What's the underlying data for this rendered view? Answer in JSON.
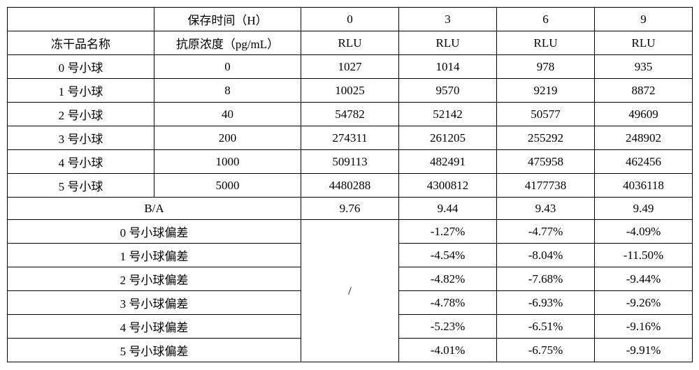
{
  "type": "table",
  "background_color": "#ffffff",
  "text_color": "#000000",
  "border_color": "#000000",
  "fontsize": 17,
  "header": {
    "row1_col1": "",
    "row1_col2": "保存时间（H）",
    "times": [
      "0",
      "3",
      "6",
      "9"
    ],
    "row2_col1": "冻干品名称",
    "row2_col2": "抗原浓度（pg/mL）",
    "rlu_labels": [
      "RLU",
      "RLU",
      "RLU",
      "RLU"
    ]
  },
  "rows": [
    {
      "name": "0 号小球",
      "conc": "0",
      "vals": [
        "1027",
        "1014",
        "978",
        "935"
      ]
    },
    {
      "name": "1 号小球",
      "conc": "8",
      "vals": [
        "10025",
        "9570",
        "9219",
        "8872"
      ]
    },
    {
      "name": "2 号小球",
      "conc": "40",
      "vals": [
        "54782",
        "52142",
        "50577",
        "49609"
      ]
    },
    {
      "name": "3 号小球",
      "conc": "200",
      "vals": [
        "274311",
        "261205",
        "255292",
        "248902"
      ]
    },
    {
      "name": "4 号小球",
      "conc": "1000",
      "vals": [
        "509113",
        "482491",
        "475958",
        "462456"
      ]
    },
    {
      "name": "5 号小球",
      "conc": "5000",
      "vals": [
        "4480288",
        "4300812",
        "4177738",
        "4036118"
      ]
    }
  ],
  "ba_row": {
    "label": "B/A",
    "vals": [
      "9.76",
      "9.44",
      "9.43",
      "9.49"
    ]
  },
  "bias_section": {
    "placeholder": "/",
    "rows": [
      {
        "name": "0 号小球偏差",
        "vals": [
          "-1.27%",
          "-4.77%",
          "-4.09%"
        ]
      },
      {
        "name": "1 号小球偏差",
        "vals": [
          "-4.54%",
          "-8.04%",
          "-11.50%"
        ]
      },
      {
        "name": "2 号小球偏差",
        "vals": [
          "-4.82%",
          "-7.68%",
          "-9.44%"
        ]
      },
      {
        "name": "3 号小球偏差",
        "vals": [
          "-4.78%",
          "-6.93%",
          "-9.26%"
        ]
      },
      {
        "name": "4 号小球偏差",
        "vals": [
          "-5.23%",
          "-6.51%",
          "-9.16%"
        ]
      },
      {
        "name": "5 号小球偏差",
        "vals": [
          "-4.01%",
          "-6.75%",
          "-9.91%"
        ]
      }
    ]
  }
}
